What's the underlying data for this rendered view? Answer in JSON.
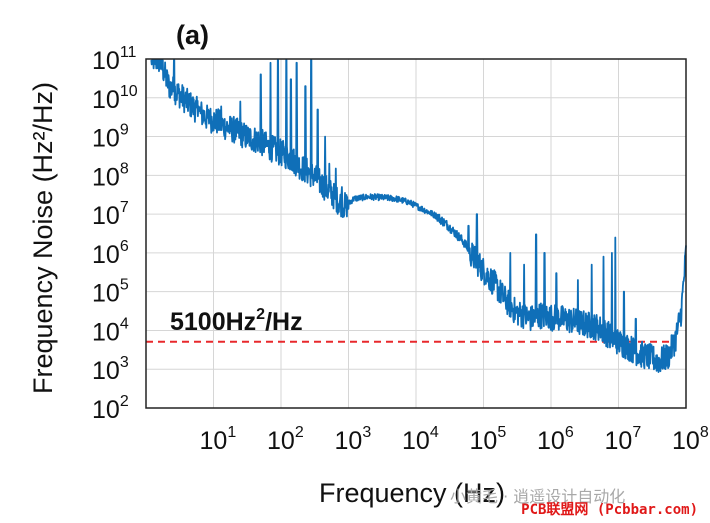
{
  "chart_data": {
    "type": "line",
    "panel_label": "(a)",
    "xlabel": "Frequency (Hz)",
    "ylabel": "Frequency Noise (Hz²/Hz)",
    "xscale": "log",
    "yscale": "log",
    "xlim": [
      1,
      100000000
    ],
    "ylim": [
      100,
      100000000000
    ],
    "grid": true,
    "x_ticks": [
      {
        "base": "10",
        "exp": "1"
      },
      {
        "base": "10",
        "exp": "2"
      },
      {
        "base": "10",
        "exp": "3"
      },
      {
        "base": "10",
        "exp": "4"
      },
      {
        "base": "10",
        "exp": "5"
      },
      {
        "base": "10",
        "exp": "6"
      },
      {
        "base": "10",
        "exp": "7"
      },
      {
        "base": "10",
        "exp": "8"
      }
    ],
    "y_ticks": [
      {
        "base": "10",
        "exp": "2"
      },
      {
        "base": "10",
        "exp": "3"
      },
      {
        "base": "10",
        "exp": "4"
      },
      {
        "base": "10",
        "exp": "5"
      },
      {
        "base": "10",
        "exp": "6"
      },
      {
        "base": "10",
        "exp": "7"
      },
      {
        "base": "10",
        "exp": "8"
      },
      {
        "base": "10",
        "exp": "9"
      },
      {
        "base": "10",
        "exp": "10"
      },
      {
        "base": "10",
        "exp": "11"
      }
    ],
    "series": [
      {
        "color": "#0f6fb8",
        "points": [
          [
            1.2,
            100000000000.0
          ],
          [
            1.6,
            90000000000.0
          ],
          [
            2.2,
            20000000000.0
          ],
          [
            3,
            13000000000.0
          ],
          [
            4,
            8000000000.0
          ],
          [
            5.5,
            5000000000.0
          ],
          [
            8,
            3000000000.0
          ],
          [
            11,
            2500000000.0
          ],
          [
            15,
            1800000000.0
          ],
          [
            20,
            1500000000.0
          ],
          [
            30,
            1000000000.0
          ],
          [
            45,
            800000000.0
          ],
          [
            60,
            600000000.0
          ],
          [
            80,
            450000000.0
          ],
          [
            110,
            350000000.0
          ],
          [
            150,
            250000000.0
          ],
          [
            200,
            160000000.0
          ],
          [
            300,
            100000000.0
          ],
          [
            400,
            60000000.0
          ],
          [
            550,
            35000000.0
          ],
          [
            700,
            22000000.0
          ],
          [
            900,
            16000000.0
          ],
          [
            1200,
            25000000.0
          ],
          [
            2000,
            28000000.0
          ],
          [
            3000,
            27000000.0
          ],
          [
            5000,
            25000000.0
          ],
          [
            8000,
            20000000.0
          ],
          [
            12000,
            14000000.0
          ],
          [
            20000,
            9000000.0
          ],
          [
            30000,
            5000000.0
          ],
          [
            50000,
            2000000.0
          ],
          [
            70000,
            800000.0
          ],
          [
            100000,
            350000.0
          ],
          [
            150000,
            150000.0
          ],
          [
            200000,
            70000.0
          ],
          [
            300000,
            30000.0
          ],
          [
            500000,
            20000.0
          ],
          [
            700000,
            25000.0
          ],
          [
            1000000,
            22000.0
          ],
          [
            1500000,
            20000.0
          ],
          [
            2000000,
            18000.0
          ],
          [
            3000000,
            15000.0
          ],
          [
            5000000,
            12000.0
          ],
          [
            7000000,
            8000.0
          ],
          [
            10000000,
            5000.0
          ],
          [
            15000000,
            3500.0
          ],
          [
            20000000,
            2500.0
          ],
          [
            30000000,
            2000.0
          ],
          [
            40000000,
            1600.0
          ],
          [
            55000000,
            2200.0
          ],
          [
            70000000,
            6000.0
          ],
          [
            85000000,
            30000.0
          ],
          [
            100000000,
            1000000.0
          ]
        ],
        "spikes": [
          [
            2.6,
            100000000000.0
          ],
          [
            6,
            6000000000.0
          ],
          [
            9,
            4000000000.0
          ],
          [
            13,
            6000000000.0
          ],
          [
            25,
            8000000000.0
          ],
          [
            50,
            40000000000.0
          ],
          [
            70,
            80000000000.0
          ],
          [
            90,
            100000000000.0
          ],
          [
            120,
            100000000000.0
          ],
          [
            140,
            30000000000.0
          ],
          [
            170,
            80000000000.0
          ],
          [
            230,
            20000000000.0
          ],
          [
            280,
            100000000000.0
          ],
          [
            350,
            5000000000.0
          ],
          [
            450,
            1000000000.0
          ],
          [
            520,
            200000000.0
          ],
          [
            650,
            150000000.0
          ],
          [
            800,
            50000000.0
          ],
          [
            60000,
            5000000.0
          ],
          [
            80000,
            10000000.0
          ],
          [
            250000,
            1000000.0
          ],
          [
            400000,
            500000.0
          ],
          [
            600000,
            3000000.0
          ],
          [
            800000,
            1000000.0
          ],
          [
            1200000,
            300000.0
          ],
          [
            2500000,
            200000.0
          ],
          [
            4000000,
            500000.0
          ],
          [
            6000000,
            800000.0
          ],
          [
            8000000,
            1000000.0
          ],
          [
            9000000,
            2500000.0
          ],
          [
            12000000,
            100000.0
          ],
          [
            18000000,
            20000.0
          ]
        ]
      }
    ],
    "reference_line": {
      "y": 5100,
      "color": "#e8282c",
      "style": "dashed",
      "x_range": [
        1,
        60000000
      ]
    },
    "annotation": {
      "text": "5100Hz",
      "sup": "2",
      "suffix": "/Hz"
    }
  },
  "watermark": {
    "text": "小黄毛 · 逍遥设计自动化",
    "site": "PCB联盟网 (Pcbbar.com)"
  }
}
